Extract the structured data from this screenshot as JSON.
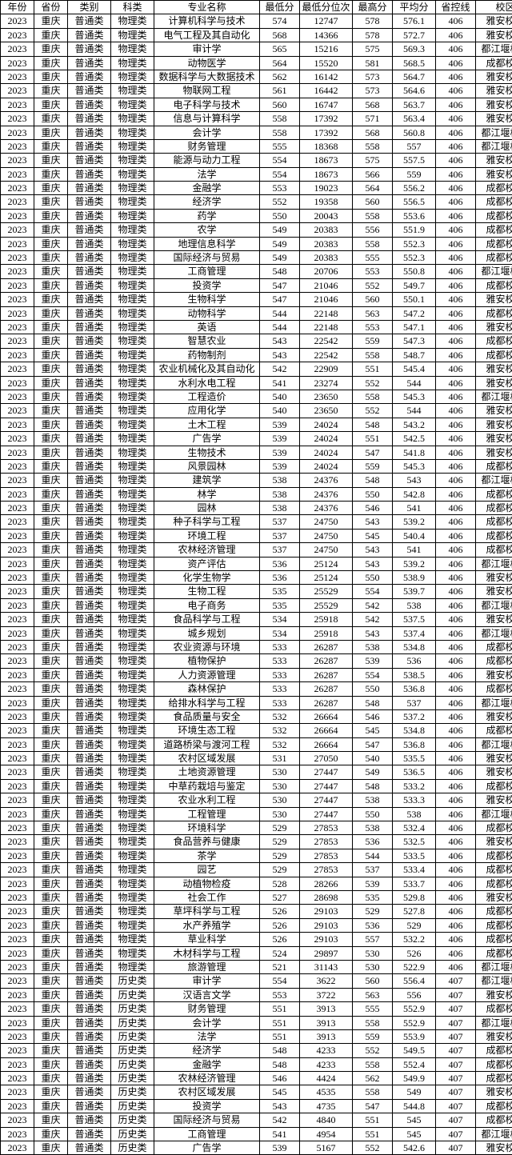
{
  "columns": [
    "年份",
    "省份",
    "类别",
    "科类",
    "专业名称",
    "最低分",
    "最低分位次",
    "最高分",
    "平均分",
    "省控线",
    "校区"
  ],
  "rows": [
    [
      "2023",
      "重庆",
      "普通类",
      "物理类",
      "计算机科学与技术",
      "574",
      "12747",
      "578",
      "576.1",
      "406",
      "雅安校区"
    ],
    [
      "2023",
      "重庆",
      "普通类",
      "物理类",
      "电气工程及其自动化",
      "568",
      "14366",
      "578",
      "572.7",
      "406",
      "雅安校区"
    ],
    [
      "2023",
      "重庆",
      "普通类",
      "物理类",
      "审计学",
      "565",
      "15216",
      "575",
      "569.3",
      "406",
      "都江堰校区"
    ],
    [
      "2023",
      "重庆",
      "普通类",
      "物理类",
      "动物医学",
      "564",
      "15520",
      "581",
      "568.5",
      "406",
      "成都校区"
    ],
    [
      "2023",
      "重庆",
      "普通类",
      "物理类",
      "数据科学与大数据技术",
      "562",
      "16142",
      "573",
      "564.7",
      "406",
      "雅安校区"
    ],
    [
      "2023",
      "重庆",
      "普通类",
      "物理类",
      "物联网工程",
      "561",
      "16442",
      "573",
      "564.6",
      "406",
      "雅安校区"
    ],
    [
      "2023",
      "重庆",
      "普通类",
      "物理类",
      "电子科学与技术",
      "560",
      "16747",
      "568",
      "563.7",
      "406",
      "雅安校区"
    ],
    [
      "2023",
      "重庆",
      "普通类",
      "物理类",
      "信息与计算科学",
      "558",
      "17392",
      "571",
      "563.4",
      "406",
      "雅安校区"
    ],
    [
      "2023",
      "重庆",
      "普通类",
      "物理类",
      "会计学",
      "558",
      "17392",
      "568",
      "560.8",
      "406",
      "都江堰校区"
    ],
    [
      "2023",
      "重庆",
      "普通类",
      "物理类",
      "财务管理",
      "555",
      "18368",
      "558",
      "557",
      "406",
      "都江堰校区"
    ],
    [
      "2023",
      "重庆",
      "普通类",
      "物理类",
      "能源与动力工程",
      "554",
      "18673",
      "575",
      "557.5",
      "406",
      "雅安校区"
    ],
    [
      "2023",
      "重庆",
      "普通类",
      "物理类",
      "法学",
      "554",
      "18673",
      "566",
      "559",
      "406",
      "雅安校区"
    ],
    [
      "2023",
      "重庆",
      "普通类",
      "物理类",
      "金融学",
      "553",
      "19023",
      "564",
      "556.2",
      "406",
      "成都校区"
    ],
    [
      "2023",
      "重庆",
      "普通类",
      "物理类",
      "经济学",
      "552",
      "19358",
      "560",
      "556.5",
      "406",
      "成都校区"
    ],
    [
      "2023",
      "重庆",
      "普通类",
      "物理类",
      "药学",
      "550",
      "20043",
      "558",
      "553.6",
      "406",
      "成都校区"
    ],
    [
      "2023",
      "重庆",
      "普通类",
      "物理类",
      "农学",
      "549",
      "20383",
      "556",
      "551.9",
      "406",
      "成都校区"
    ],
    [
      "2023",
      "重庆",
      "普通类",
      "物理类",
      "地理信息科学",
      "549",
      "20383",
      "558",
      "552.3",
      "406",
      "成都校区"
    ],
    [
      "2023",
      "重庆",
      "普通类",
      "物理类",
      "国际经济与贸易",
      "549",
      "20383",
      "555",
      "552.3",
      "406",
      "成都校区"
    ],
    [
      "2023",
      "重庆",
      "普通类",
      "物理类",
      "工商管理",
      "548",
      "20706",
      "553",
      "550.8",
      "406",
      "都江堰校区"
    ],
    [
      "2023",
      "重庆",
      "普通类",
      "物理类",
      "投资学",
      "547",
      "21046",
      "552",
      "549.7",
      "406",
      "成都校区"
    ],
    [
      "2023",
      "重庆",
      "普通类",
      "物理类",
      "生物科学",
      "547",
      "21046",
      "560",
      "550.1",
      "406",
      "雅安校区"
    ],
    [
      "2023",
      "重庆",
      "普通类",
      "物理类",
      "动物科学",
      "544",
      "22148",
      "563",
      "547.2",
      "406",
      "成都校区"
    ],
    [
      "2023",
      "重庆",
      "普通类",
      "物理类",
      "英语",
      "544",
      "22148",
      "553",
      "547.1",
      "406",
      "雅安校区"
    ],
    [
      "2023",
      "重庆",
      "普通类",
      "物理类",
      "智慧农业",
      "543",
      "22542",
      "559",
      "547.3",
      "406",
      "成都校区"
    ],
    [
      "2023",
      "重庆",
      "普通类",
      "物理类",
      "药物制剂",
      "543",
      "22542",
      "558",
      "548.7",
      "406",
      "成都校区"
    ],
    [
      "2023",
      "重庆",
      "普通类",
      "物理类",
      "农业机械化及其自动化",
      "542",
      "22909",
      "551",
      "545.4",
      "406",
      "雅安校区"
    ],
    [
      "2023",
      "重庆",
      "普通类",
      "物理类",
      "水利水电工程",
      "541",
      "23274",
      "552",
      "544",
      "406",
      "雅安校区"
    ],
    [
      "2023",
      "重庆",
      "普通类",
      "物理类",
      "工程造价",
      "540",
      "23650",
      "558",
      "545.3",
      "406",
      "都江堰校区"
    ],
    [
      "2023",
      "重庆",
      "普通类",
      "物理类",
      "应用化学",
      "540",
      "23650",
      "552",
      "544",
      "406",
      "雅安校区"
    ],
    [
      "2023",
      "重庆",
      "普通类",
      "物理类",
      "土木工程",
      "539",
      "24024",
      "548",
      "543.2",
      "406",
      "雅安校区"
    ],
    [
      "2023",
      "重庆",
      "普通类",
      "物理类",
      "广告学",
      "539",
      "24024",
      "551",
      "542.5",
      "406",
      "雅安校区"
    ],
    [
      "2023",
      "重庆",
      "普通类",
      "物理类",
      "生物技术",
      "539",
      "24024",
      "547",
      "541.8",
      "406",
      "雅安校区"
    ],
    [
      "2023",
      "重庆",
      "普通类",
      "物理类",
      "风景园林",
      "539",
      "24024",
      "559",
      "545.3",
      "406",
      "成都校区"
    ],
    [
      "2023",
      "重庆",
      "普通类",
      "物理类",
      "建筑学",
      "538",
      "24376",
      "548",
      "543",
      "406",
      "都江堰校区"
    ],
    [
      "2023",
      "重庆",
      "普通类",
      "物理类",
      "林学",
      "538",
      "24376",
      "550",
      "542.8",
      "406",
      "成都校区"
    ],
    [
      "2023",
      "重庆",
      "普通类",
      "物理类",
      "园林",
      "538",
      "24376",
      "546",
      "541",
      "406",
      "成都校区"
    ],
    [
      "2023",
      "重庆",
      "普通类",
      "物理类",
      "种子科学与工程",
      "537",
      "24750",
      "543",
      "539.2",
      "406",
      "成都校区"
    ],
    [
      "2023",
      "重庆",
      "普通类",
      "物理类",
      "环境工程",
      "537",
      "24750",
      "545",
      "540.4",
      "406",
      "成都校区"
    ],
    [
      "2023",
      "重庆",
      "普通类",
      "物理类",
      "农林经济管理",
      "537",
      "24750",
      "543",
      "541",
      "406",
      "成都校区"
    ],
    [
      "2023",
      "重庆",
      "普通类",
      "物理类",
      "资产评估",
      "536",
      "25124",
      "543",
      "539.2",
      "406",
      "都江堰校区"
    ],
    [
      "2023",
      "重庆",
      "普通类",
      "物理类",
      "化学生物学",
      "536",
      "25124",
      "550",
      "538.9",
      "406",
      "雅安校区"
    ],
    [
      "2023",
      "重庆",
      "普通类",
      "物理类",
      "生物工程",
      "535",
      "25529",
      "554",
      "539.7",
      "406",
      "雅安校区"
    ],
    [
      "2023",
      "重庆",
      "普通类",
      "物理类",
      "电子商务",
      "535",
      "25529",
      "542",
      "538",
      "406",
      "都江堰校区"
    ],
    [
      "2023",
      "重庆",
      "普通类",
      "物理类",
      "食品科学与工程",
      "534",
      "25918",
      "542",
      "537.5",
      "406",
      "雅安校区"
    ],
    [
      "2023",
      "重庆",
      "普通类",
      "物理类",
      "城乡规划",
      "534",
      "25918",
      "543",
      "537.4",
      "406",
      "都江堰校区"
    ],
    [
      "2023",
      "重庆",
      "普通类",
      "物理类",
      "农业资源与环境",
      "533",
      "26287",
      "538",
      "534.8",
      "406",
      "成都校区"
    ],
    [
      "2023",
      "重庆",
      "普通类",
      "物理类",
      "植物保护",
      "533",
      "26287",
      "539",
      "536",
      "406",
      "成都校区"
    ],
    [
      "2023",
      "重庆",
      "普通类",
      "物理类",
      "人力资源管理",
      "533",
      "26287",
      "554",
      "538.5",
      "406",
      "雅安校区"
    ],
    [
      "2023",
      "重庆",
      "普通类",
      "物理类",
      "森林保护",
      "533",
      "26287",
      "550",
      "536.8",
      "406",
      "成都校区"
    ],
    [
      "2023",
      "重庆",
      "普通类",
      "物理类",
      "给排水科学与工程",
      "533",
      "26287",
      "548",
      "537",
      "406",
      "都江堰校区"
    ],
    [
      "2023",
      "重庆",
      "普通类",
      "物理类",
      "食品质量与安全",
      "532",
      "26664",
      "546",
      "537.2",
      "406",
      "雅安校区"
    ],
    [
      "2023",
      "重庆",
      "普通类",
      "物理类",
      "环境生态工程",
      "532",
      "26664",
      "545",
      "534.8",
      "406",
      "成都校区"
    ],
    [
      "2023",
      "重庆",
      "普通类",
      "物理类",
      "道路桥梁与渡河工程",
      "532",
      "26664",
      "547",
      "536.8",
      "406",
      "都江堰校区"
    ],
    [
      "2023",
      "重庆",
      "普通类",
      "物理类",
      "农村区域发展",
      "531",
      "27050",
      "540",
      "535.5",
      "406",
      "雅安校区"
    ],
    [
      "2023",
      "重庆",
      "普通类",
      "物理类",
      "土地资源管理",
      "530",
      "27447",
      "549",
      "536.5",
      "406",
      "雅安校区"
    ],
    [
      "2023",
      "重庆",
      "普通类",
      "物理类",
      "中草药栽培与鉴定",
      "530",
      "27447",
      "548",
      "533.2",
      "406",
      "成都校区"
    ],
    [
      "2023",
      "重庆",
      "普通类",
      "物理类",
      "农业水利工程",
      "530",
      "27447",
      "538",
      "533.3",
      "406",
      "雅安校区"
    ],
    [
      "2023",
      "重庆",
      "普通类",
      "物理类",
      "工程管理",
      "530",
      "27447",
      "550",
      "538",
      "406",
      "都江堰校区"
    ],
    [
      "2023",
      "重庆",
      "普通类",
      "物理类",
      "环境科学",
      "529",
      "27853",
      "538",
      "532.4",
      "406",
      "成都校区"
    ],
    [
      "2023",
      "重庆",
      "普通类",
      "物理类",
      "食品营养与健康",
      "529",
      "27853",
      "536",
      "532.5",
      "406",
      "雅安校区"
    ],
    [
      "2023",
      "重庆",
      "普通类",
      "物理类",
      "茶学",
      "529",
      "27853",
      "544",
      "533.5",
      "406",
      "成都校区"
    ],
    [
      "2023",
      "重庆",
      "普通类",
      "物理类",
      "园艺",
      "529",
      "27853",
      "537",
      "533.4",
      "406",
      "成都校区"
    ],
    [
      "2023",
      "重庆",
      "普通类",
      "物理类",
      "动植物检疫",
      "528",
      "28266",
      "539",
      "533.7",
      "406",
      "成都校区"
    ],
    [
      "2023",
      "重庆",
      "普通类",
      "物理类",
      "社会工作",
      "527",
      "28698",
      "535",
      "529.8",
      "406",
      "雅安校区"
    ],
    [
      "2023",
      "重庆",
      "普通类",
      "物理类",
      "草坪科学与工程",
      "526",
      "29103",
      "529",
      "527.8",
      "406",
      "成都校区"
    ],
    [
      "2023",
      "重庆",
      "普通类",
      "物理类",
      "水产养殖学",
      "526",
      "29103",
      "536",
      "529",
      "406",
      "成都校区"
    ],
    [
      "2023",
      "重庆",
      "普通类",
      "物理类",
      "草业科学",
      "526",
      "29103",
      "557",
      "532.2",
      "406",
      "成都校区"
    ],
    [
      "2023",
      "重庆",
      "普通类",
      "物理类",
      "木材科学与工程",
      "524",
      "29897",
      "530",
      "526",
      "406",
      "成都校区"
    ],
    [
      "2023",
      "重庆",
      "普通类",
      "物理类",
      "旅游管理",
      "521",
      "31143",
      "530",
      "522.9",
      "406",
      "都江堰校区"
    ],
    [
      "2023",
      "重庆",
      "普通类",
      "历史类",
      "审计学",
      "554",
      "3622",
      "560",
      "556.4",
      "407",
      "都江堰校区"
    ],
    [
      "2023",
      "重庆",
      "普通类",
      "历史类",
      "汉语言文学",
      "553",
      "3722",
      "563",
      "556",
      "407",
      "雅安校区"
    ],
    [
      "2023",
      "重庆",
      "普通类",
      "历史类",
      "财务管理",
      "551",
      "3913",
      "555",
      "552.9",
      "407",
      "成都校区"
    ],
    [
      "2023",
      "重庆",
      "普通类",
      "历史类",
      "会计学",
      "551",
      "3913",
      "558",
      "552.9",
      "407",
      "都江堰校区"
    ],
    [
      "2023",
      "重庆",
      "普通类",
      "历史类",
      "法学",
      "551",
      "3913",
      "559",
      "553.9",
      "407",
      "雅安校区"
    ],
    [
      "2023",
      "重庆",
      "普通类",
      "历史类",
      "经济学",
      "548",
      "4233",
      "552",
      "549.5",
      "407",
      "成都校区"
    ],
    [
      "2023",
      "重庆",
      "普通类",
      "历史类",
      "金融学",
      "548",
      "4233",
      "558",
      "552.4",
      "407",
      "成都校区"
    ],
    [
      "2023",
      "重庆",
      "普通类",
      "历史类",
      "农林经济管理",
      "546",
      "4424",
      "562",
      "549.9",
      "407",
      "成都校区"
    ],
    [
      "2023",
      "重庆",
      "普通类",
      "历史类",
      "农村区域发展",
      "545",
      "4535",
      "558",
      "549",
      "407",
      "雅安校区"
    ],
    [
      "2023",
      "重庆",
      "普通类",
      "历史类",
      "投资学",
      "543",
      "4735",
      "547",
      "544.8",
      "407",
      "成都校区"
    ],
    [
      "2023",
      "重庆",
      "普通类",
      "历史类",
      "国际经济与贸易",
      "542",
      "4840",
      "551",
      "545",
      "407",
      "成都校区"
    ],
    [
      "2023",
      "重庆",
      "普通类",
      "历史类",
      "工商管理",
      "541",
      "4954",
      "551",
      "545",
      "407",
      "都江堰校区"
    ],
    [
      "2023",
      "重庆",
      "普通类",
      "历史类",
      "广告学",
      "539",
      "5167",
      "552",
      "542.6",
      "407",
      "雅安校区"
    ]
  ]
}
